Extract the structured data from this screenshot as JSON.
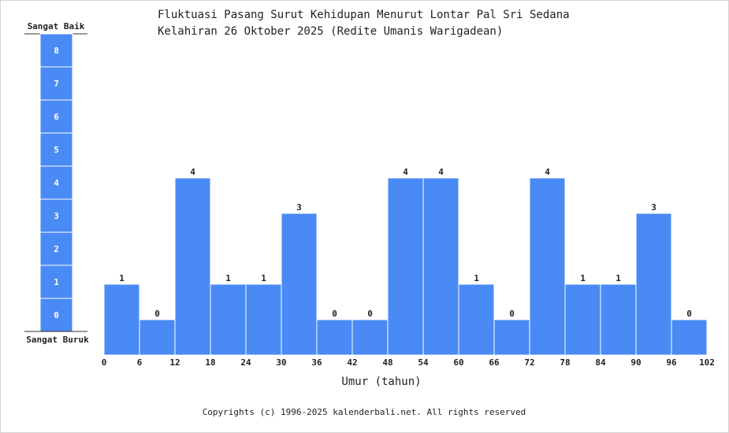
{
  "chart_data": {
    "type": "bar",
    "title": "Fluktuasi Pasang Surut Kehidupan Menurut Lontar Pal Sri Sedana",
    "subtitle": "Kelahiran 26 Oktober 2025 (Redite Umanis Warigadean)",
    "xlabel": "Umur (tahun)",
    "ylabel": "",
    "x_ticks": [
      "0",
      "6",
      "12",
      "18",
      "24",
      "30",
      "36",
      "42",
      "48",
      "54",
      "60",
      "66",
      "72",
      "78",
      "84",
      "90",
      "96",
      "102"
    ],
    "bins": [
      {
        "start": 0,
        "end": 6,
        "value": 1
      },
      {
        "start": 6,
        "end": 12,
        "value": 0
      },
      {
        "start": 12,
        "end": 18,
        "value": 4
      },
      {
        "start": 18,
        "end": 24,
        "value": 1
      },
      {
        "start": 24,
        "end": 30,
        "value": 1
      },
      {
        "start": 30,
        "end": 36,
        "value": 3
      },
      {
        "start": 36,
        "end": 42,
        "value": 0
      },
      {
        "start": 42,
        "end": 48,
        "value": 0
      },
      {
        "start": 48,
        "end": 54,
        "value": 4
      },
      {
        "start": 54,
        "end": 60,
        "value": 4
      },
      {
        "start": 60,
        "end": 66,
        "value": 1
      },
      {
        "start": 66,
        "end": 72,
        "value": 0
      },
      {
        "start": 72,
        "end": 78,
        "value": 4
      },
      {
        "start": 78,
        "end": 84,
        "value": 1
      },
      {
        "start": 84,
        "end": 90,
        "value": 1
      },
      {
        "start": 90,
        "end": 96,
        "value": 3
      },
      {
        "start": 96,
        "end": 102,
        "value": 0
      }
    ],
    "scale": {
      "top_label": "Sangat Baik",
      "bottom_label": "Sangat Buruk",
      "levels": [
        "0",
        "1",
        "2",
        "3",
        "4",
        "5",
        "6",
        "7",
        "8"
      ]
    },
    "ylim": [
      -1,
      8
    ],
    "xlim": [
      0,
      102
    ],
    "grid": false,
    "legend": "none",
    "colors": {
      "bar": "#4a8af4",
      "bar_stroke": "#ffffff",
      "text": "#222222"
    }
  },
  "footer": {
    "copyright": "Copyrights (c) 1996-2025 kalenderbali.net. All rights reserved"
  }
}
